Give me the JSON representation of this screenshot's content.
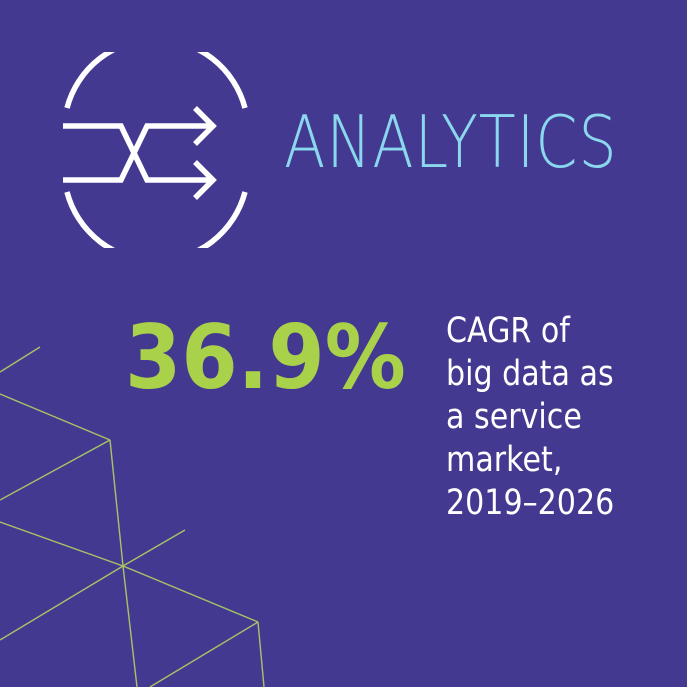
{
  "header": {
    "icon": "merging-arrows-circle-icon",
    "title": "ANALYTICS"
  },
  "stat": {
    "value": "36.9%",
    "description_lines": [
      "CAGR of",
      "big data as",
      "a service",
      "market,",
      "2019–2026"
    ]
  },
  "colors": {
    "background": "#443990",
    "title": "#8ad7ee",
    "stat_value": "#a9d24a",
    "description": "#ffffff",
    "icon": "#ffffff",
    "decor_lines": "#b9dd5e"
  }
}
